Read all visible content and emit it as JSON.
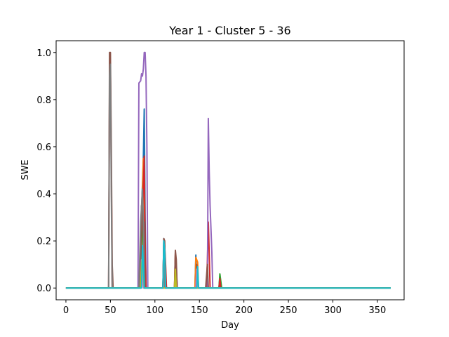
{
  "chart_data": {
    "type": "line",
    "title": "Year 1 - Cluster 5 - 36",
    "xlabel": "Day",
    "ylabel": "SWE",
    "xlim": [
      -11,
      380
    ],
    "ylim": [
      -0.05,
      1.05
    ],
    "x_ticks": [
      0,
      50,
      100,
      150,
      200,
      250,
      300,
      350
    ],
    "y_ticks": [
      0.0,
      0.2,
      0.4,
      0.6,
      0.8,
      1.0
    ],
    "x_tick_labels": [
      "0",
      "50",
      "100",
      "150",
      "200",
      "250",
      "300",
      "350"
    ],
    "y_tick_labels": [
      "0.0",
      "0.2",
      "0.4",
      "0.6",
      "0.8",
      "1.0"
    ],
    "grid": false,
    "legend": "none",
    "series": [
      {
        "color": "#1f77b4",
        "points": [
          [
            0,
            0
          ],
          [
            81,
            0
          ],
          [
            83,
            0.05
          ],
          [
            85,
            0.33
          ],
          [
            87,
            0.55
          ],
          [
            88,
            0.76
          ],
          [
            89,
            0.3
          ],
          [
            90,
            0
          ],
          [
            109,
            0
          ],
          [
            110,
            0.21
          ],
          [
            111,
            0.15
          ],
          [
            112,
            0.05
          ],
          [
            113,
            0
          ],
          [
            145,
            0
          ],
          [
            146,
            0.14
          ],
          [
            147,
            0.02
          ],
          [
            148,
            0
          ],
          [
            172,
            0
          ],
          [
            173,
            0.05
          ],
          [
            174,
            0
          ],
          [
            365,
            0
          ]
        ]
      },
      {
        "color": "#ff7f0e",
        "points": [
          [
            0,
            0
          ],
          [
            83,
            0
          ],
          [
            85,
            0.25
          ],
          [
            86,
            0.4
          ],
          [
            87,
            0.55
          ],
          [
            88,
            0.35
          ],
          [
            89,
            0
          ],
          [
            109,
            0
          ],
          [
            110,
            0.17
          ],
          [
            111,
            0.05
          ],
          [
            112,
            0
          ],
          [
            122,
            0
          ],
          [
            123,
            0.14
          ],
          [
            124,
            0.1
          ],
          [
            125,
            0
          ],
          [
            145,
            0
          ],
          [
            146,
            0.13
          ],
          [
            148,
            0.11
          ],
          [
            149,
            0
          ],
          [
            365,
            0
          ]
        ]
      },
      {
        "color": "#2ca02c",
        "points": [
          [
            0,
            0
          ],
          [
            83,
            0
          ],
          [
            84,
            0.2
          ],
          [
            85,
            0.35
          ],
          [
            86,
            0.27
          ],
          [
            87,
            0.07
          ],
          [
            88,
            0
          ],
          [
            109,
            0
          ],
          [
            110,
            0.14
          ],
          [
            111,
            0.09
          ],
          [
            112,
            0
          ],
          [
            172,
            0
          ],
          [
            173,
            0.06
          ],
          [
            174,
            0.03
          ],
          [
            175,
            0
          ],
          [
            365,
            0
          ]
        ]
      },
      {
        "color": "#d62728",
        "points": [
          [
            0,
            0
          ],
          [
            48,
            0
          ],
          [
            49,
            0.85
          ],
          [
            50,
            0.95
          ],
          [
            51,
            0.5
          ],
          [
            52,
            0
          ],
          [
            82,
            0
          ],
          [
            84,
            0.2
          ],
          [
            86,
            0.3
          ],
          [
            87,
            0.42
          ],
          [
            88,
            0.56
          ],
          [
            89,
            0.2
          ],
          [
            90,
            0
          ],
          [
            109,
            0
          ],
          [
            110,
            0.2
          ],
          [
            111,
            0.18
          ],
          [
            112,
            0.1
          ],
          [
            113,
            0
          ],
          [
            122,
            0
          ],
          [
            123,
            0.15
          ],
          [
            124,
            0.08
          ],
          [
            125,
            0
          ],
          [
            146,
            0
          ],
          [
            147,
            0.06
          ],
          [
            148,
            0
          ],
          [
            158,
            0
          ],
          [
            159,
            0.12
          ],
          [
            160,
            0.28
          ],
          [
            161,
            0.15
          ],
          [
            162,
            0
          ],
          [
            172,
            0
          ],
          [
            173,
            0.04
          ],
          [
            174,
            0
          ],
          [
            365,
            0
          ]
        ]
      },
      {
        "color": "#9467bd",
        "points": [
          [
            0,
            0
          ],
          [
            81,
            0
          ],
          [
            82,
            0.87
          ],
          [
            84,
            0.88
          ],
          [
            85,
            0.91
          ],
          [
            86,
            0.9
          ],
          [
            87,
            0.93
          ],
          [
            88,
            1.0
          ],
          [
            89,
            1.0
          ],
          [
            90,
            0.9
          ],
          [
            91,
            0.6
          ],
          [
            92,
            0
          ],
          [
            159,
            0
          ],
          [
            160,
            0.72
          ],
          [
            161,
            0.5
          ],
          [
            162,
            0.35
          ],
          [
            163,
            0.25
          ],
          [
            164,
            0.15
          ],
          [
            165,
            0
          ],
          [
            365,
            0
          ]
        ]
      },
      {
        "color": "#8c564b",
        "points": [
          [
            0,
            0
          ],
          [
            48,
            0
          ],
          [
            49,
            1.0
          ],
          [
            50,
            1.0
          ],
          [
            51,
            0.6
          ],
          [
            52,
            0.1
          ],
          [
            53,
            0
          ],
          [
            84,
            0
          ],
          [
            85,
            0.35
          ],
          [
            86,
            0.3
          ],
          [
            87,
            0.22
          ],
          [
            88,
            0.28
          ],
          [
            89,
            0
          ],
          [
            109,
            0
          ],
          [
            110,
            0.21
          ],
          [
            111,
            0.2
          ],
          [
            112,
            0
          ],
          [
            122,
            0
          ],
          [
            123,
            0.16
          ],
          [
            124,
            0.12
          ],
          [
            125,
            0
          ],
          [
            146,
            0
          ],
          [
            147,
            0.1
          ],
          [
            148,
            0.05
          ],
          [
            149,
            0
          ],
          [
            157,
            0
          ],
          [
            158,
            0.05
          ],
          [
            159,
            0.1
          ],
          [
            160,
            0
          ],
          [
            365,
            0
          ]
        ]
      },
      {
        "color": "#e377c2",
        "points": [
          [
            0,
            0
          ],
          [
            84,
            0
          ],
          [
            85,
            0.12
          ],
          [
            86,
            0.05
          ],
          [
            87,
            0
          ],
          [
            146,
            0
          ],
          [
            147,
            0.08
          ],
          [
            148,
            0
          ],
          [
            365,
            0
          ]
        ]
      },
      {
        "color": "#7f7f7f",
        "points": [
          [
            0,
            0
          ],
          [
            48,
            0
          ],
          [
            49,
            0.9
          ],
          [
            50,
            0.95
          ],
          [
            51,
            0.4
          ],
          [
            52,
            0
          ],
          [
            82,
            0
          ],
          [
            84,
            0.28
          ],
          [
            86,
            0.42
          ],
          [
            87,
            0.3
          ],
          [
            88,
            0
          ],
          [
            109,
            0
          ],
          [
            110,
            0.12
          ],
          [
            111,
            0
          ],
          [
            365,
            0
          ]
        ]
      },
      {
        "color": "#bcbd22",
        "points": [
          [
            0,
            0
          ],
          [
            84,
            0
          ],
          [
            85,
            0.1
          ],
          [
            86,
            0.14
          ],
          [
            87,
            0.06
          ],
          [
            88,
            0
          ],
          [
            122,
            0
          ],
          [
            123,
            0.08
          ],
          [
            124,
            0
          ],
          [
            365,
            0
          ]
        ]
      },
      {
        "color": "#17becf",
        "points": [
          [
            0,
            0
          ],
          [
            85,
            0
          ],
          [
            86,
            0.18
          ],
          [
            87,
            0.1
          ],
          [
            88,
            0
          ],
          [
            109,
            0
          ],
          [
            110,
            0.2
          ],
          [
            111,
            0.16
          ],
          [
            112,
            0
          ],
          [
            147,
            0
          ],
          [
            148,
            0.09
          ],
          [
            149,
            0
          ],
          [
            365,
            0
          ]
        ]
      }
    ]
  }
}
